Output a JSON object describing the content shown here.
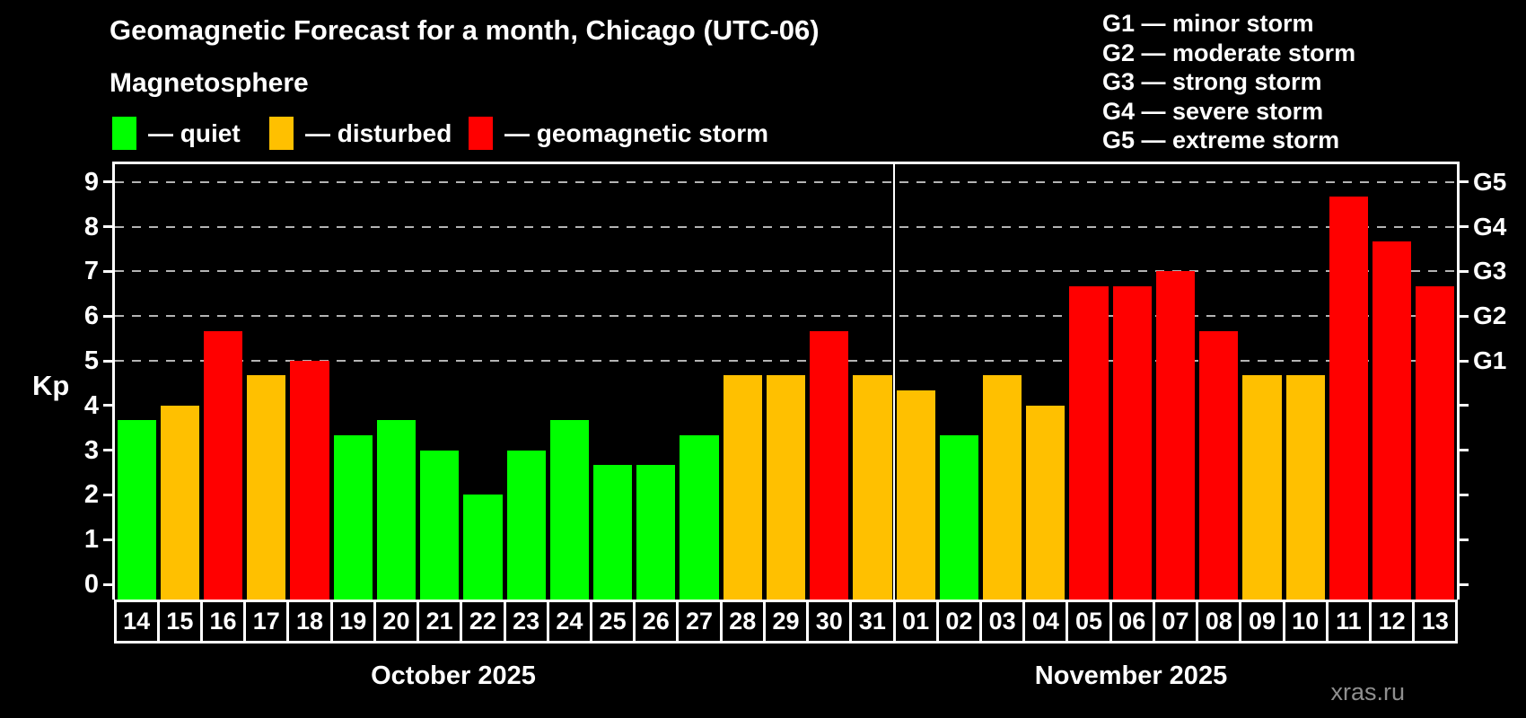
{
  "header": {
    "title": "Geomagnetic Forecast for a month, Chicago (UTC-06)",
    "subtitle": "Magnetosphere"
  },
  "legend": {
    "items": [
      {
        "label": "— quiet",
        "color": "#00ff00",
        "condition": "quiet"
      },
      {
        "label": "— disturbed",
        "color": "#ffc000",
        "condition": "disturbed"
      },
      {
        "label": "— geomagnetic storm",
        "color": "#ff0000",
        "condition": "storm"
      }
    ]
  },
  "storm_scale": [
    "G1 — minor storm",
    "G2 — moderate storm",
    "G3 — strong storm",
    "G4 — severe storm",
    "G5 — extreme storm"
  ],
  "watermark": "xras.ru",
  "chart_data": {
    "type": "bar",
    "title": "Geomagnetic Forecast for a month, Chicago (UTC-06)",
    "ylabel": "Kp",
    "ylim": [
      0,
      9
    ],
    "yticks": [
      0,
      1,
      2,
      3,
      4,
      5,
      6,
      7,
      8,
      9
    ],
    "grid_levels": [
      5,
      6,
      7,
      8,
      9
    ],
    "grid_style": "dashed",
    "legend_position": "top",
    "right_axis": [
      {
        "kp": 5,
        "label": "G1"
      },
      {
        "kp": 6,
        "label": "G2"
      },
      {
        "kp": 7,
        "label": "G3"
      },
      {
        "kp": 8,
        "label": "G4"
      },
      {
        "kp": 9,
        "label": "G5"
      }
    ],
    "condition_colors": {
      "quiet": "#00ff00",
      "disturbed": "#ffc000",
      "storm": "#ff0000"
    },
    "months": [
      {
        "label": "October 2025",
        "bars": [
          {
            "day": "14",
            "kp": 3.67,
            "condition": "quiet"
          },
          {
            "day": "15",
            "kp": 4.0,
            "condition": "disturbed"
          },
          {
            "day": "16",
            "kp": 5.67,
            "condition": "storm"
          },
          {
            "day": "17",
            "kp": 4.67,
            "condition": "disturbed"
          },
          {
            "day": "18",
            "kp": 5.0,
            "condition": "storm"
          },
          {
            "day": "19",
            "kp": 3.33,
            "condition": "quiet"
          },
          {
            "day": "20",
            "kp": 3.67,
            "condition": "quiet"
          },
          {
            "day": "21",
            "kp": 3.0,
            "condition": "quiet"
          },
          {
            "day": "22",
            "kp": 2.0,
            "condition": "quiet"
          },
          {
            "day": "23",
            "kp": 3.0,
            "condition": "quiet"
          },
          {
            "day": "24",
            "kp": 3.67,
            "condition": "quiet"
          },
          {
            "day": "25",
            "kp": 2.67,
            "condition": "quiet"
          },
          {
            "day": "26",
            "kp": 2.67,
            "condition": "quiet"
          },
          {
            "day": "27",
            "kp": 3.33,
            "condition": "quiet"
          },
          {
            "day": "28",
            "kp": 4.67,
            "condition": "disturbed"
          },
          {
            "day": "29",
            "kp": 4.67,
            "condition": "disturbed"
          },
          {
            "day": "30",
            "kp": 5.67,
            "condition": "storm"
          },
          {
            "day": "31",
            "kp": 4.67,
            "condition": "disturbed"
          }
        ]
      },
      {
        "label": "November 2025",
        "bars": [
          {
            "day": "01",
            "kp": 4.33,
            "condition": "disturbed"
          },
          {
            "day": "02",
            "kp": 3.33,
            "condition": "quiet"
          },
          {
            "day": "03",
            "kp": 4.67,
            "condition": "disturbed"
          },
          {
            "day": "04",
            "kp": 4.0,
            "condition": "disturbed"
          },
          {
            "day": "05",
            "kp": 6.67,
            "condition": "storm"
          },
          {
            "day": "06",
            "kp": 6.67,
            "condition": "storm"
          },
          {
            "day": "07",
            "kp": 7.0,
            "condition": "storm"
          },
          {
            "day": "08",
            "kp": 5.67,
            "condition": "storm"
          },
          {
            "day": "09",
            "kp": 4.67,
            "condition": "disturbed"
          },
          {
            "day": "10",
            "kp": 4.67,
            "condition": "disturbed"
          },
          {
            "day": "11",
            "kp": 8.67,
            "condition": "storm"
          },
          {
            "day": "12",
            "kp": 7.67,
            "condition": "storm"
          },
          {
            "day": "13",
            "kp": 6.67,
            "condition": "storm"
          }
        ]
      }
    ]
  }
}
